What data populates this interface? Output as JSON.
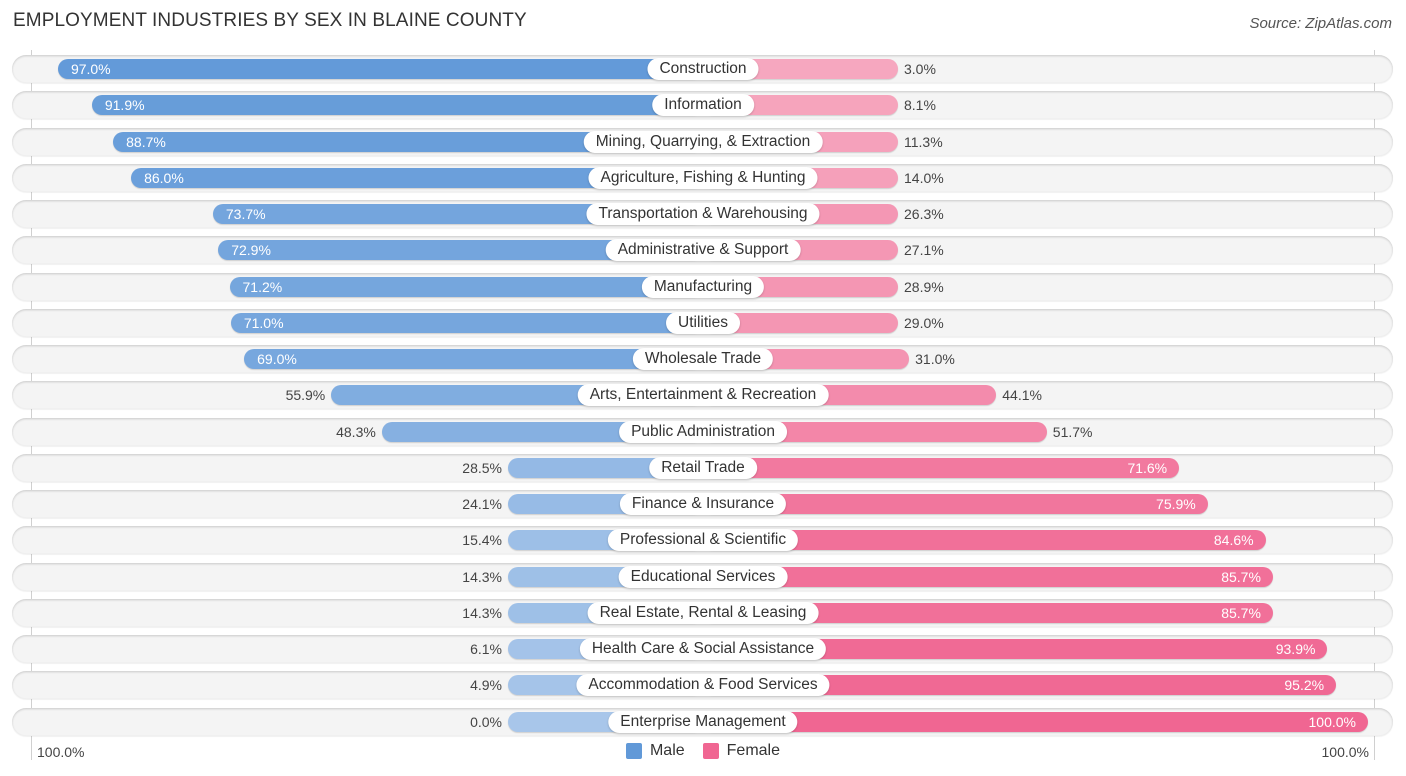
{
  "header": {
    "title": "EMPLOYMENT INDUSTRIES BY SEX IN BLAINE COUNTY",
    "source": "Source: ZipAtlas.com"
  },
  "colors": {
    "male_strong": "#6199d8",
    "male_light": "#a8c6ea",
    "female_strong": "#f06692",
    "female_light": "#f6a9c0"
  },
  "chart_data": {
    "type": "bar",
    "orientation": "horizontal-diverging",
    "title": "EMPLOYMENT INDUSTRIES BY SEX IN BLAINE COUNTY",
    "categories": [
      "Construction",
      "Information",
      "Mining, Quarrying, & Extraction",
      "Agriculture, Fishing & Hunting",
      "Transportation & Warehousing",
      "Administrative & Support",
      "Manufacturing",
      "Utilities",
      "Wholesale Trade",
      "Arts, Entertainment & Recreation",
      "Public Administration",
      "Retail Trade",
      "Finance & Insurance",
      "Professional & Scientific",
      "Educational Services",
      "Real Estate, Rental & Leasing",
      "Health Care & Social Assistance",
      "Accommodation & Food Services",
      "Enterprise Management"
    ],
    "series": [
      {
        "name": "Male",
        "values": [
          97.0,
          91.9,
          88.7,
          86.0,
          73.7,
          72.9,
          71.2,
          71.0,
          69.0,
          55.9,
          48.3,
          28.5,
          24.1,
          15.4,
          14.3,
          14.3,
          6.1,
          4.9,
          0.0
        ],
        "labels": [
          "97.0%",
          "91.9%",
          "88.7%",
          "86.0%",
          "73.7%",
          "72.9%",
          "71.2%",
          "71.0%",
          "69.0%",
          "55.9%",
          "48.3%",
          "28.5%",
          "24.1%",
          "15.4%",
          "14.3%",
          "14.3%",
          "6.1%",
          "4.9%",
          "0.0%"
        ]
      },
      {
        "name": "Female",
        "values": [
          3.0,
          8.1,
          11.3,
          14.0,
          26.3,
          27.1,
          28.9,
          29.0,
          31.0,
          44.1,
          51.7,
          71.6,
          75.9,
          84.6,
          85.7,
          85.7,
          93.9,
          95.2,
          100.0
        ],
        "labels": [
          "3.0%",
          "8.1%",
          "11.3%",
          "14.0%",
          "26.3%",
          "27.1%",
          "28.9%",
          "29.0%",
          "31.0%",
          "44.1%",
          "51.7%",
          "71.6%",
          "75.9%",
          "84.6%",
          "85.7%",
          "85.7%",
          "93.9%",
          "95.2%",
          "100.0%"
        ]
      }
    ],
    "axis": {
      "left_label": "100.0%",
      "right_label": "100.0%",
      "range": [
        -100,
        100
      ]
    },
    "legend": [
      {
        "name": "Male",
        "color": "#6199d8"
      },
      {
        "name": "Female",
        "color": "#f06692"
      }
    ],
    "legend_position": "bottom-center"
  }
}
